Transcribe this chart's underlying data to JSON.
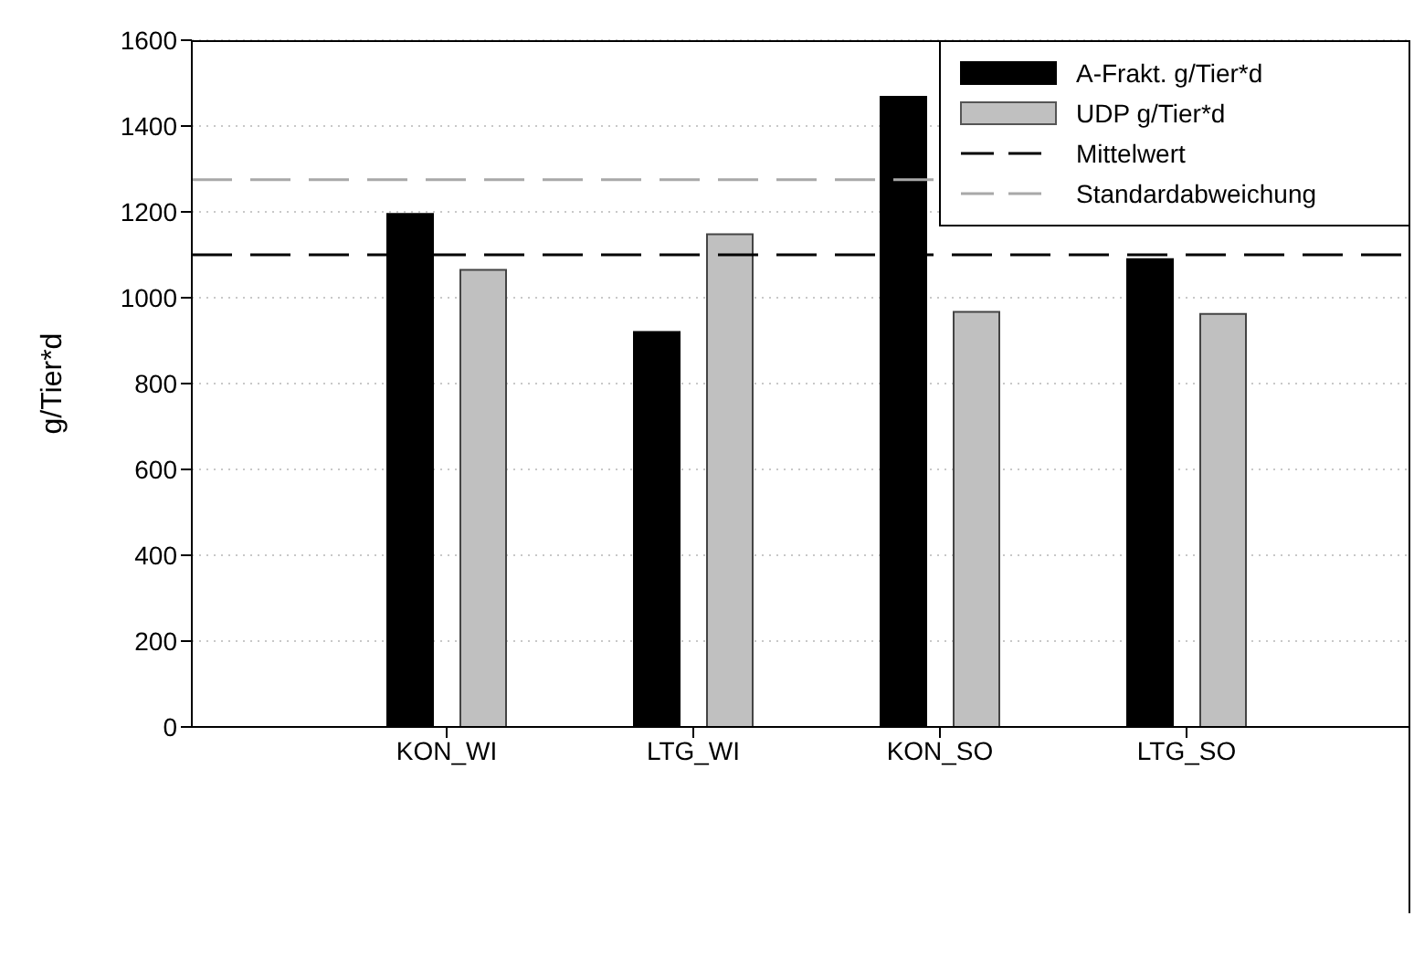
{
  "chart_data": {
    "type": "bar",
    "ylabel": "g/Tier*d",
    "categories": [
      "KON_WI",
      "LTG_WI",
      "KON_SO",
      "LTG_SO"
    ],
    "series": [
      {
        "name": "A-Frakt. g/Tier*d",
        "color": "#000000",
        "values": [
          1195,
          920,
          1468,
          1090
        ]
      },
      {
        "name": "UDP g/Tier*d",
        "color": "#c0c0c0",
        "values": [
          1065,
          1148,
          967,
          962
        ]
      }
    ],
    "ylim": [
      0,
      1600
    ],
    "yticks": [
      0,
      200,
      400,
      600,
      800,
      1000,
      1200,
      1400,
      1600
    ],
    "grid": "y",
    "legend": "top right",
    "ref_lines": [
      {
        "axis": "y",
        "value": 1100,
        "label": "Mittelwert",
        "color": "#000000",
        "line_style": "dashed"
      },
      {
        "axis": "y",
        "value": 1275,
        "label": "Standardabweichung",
        "color": "#a8a8a8",
        "line_style": "dashed"
      }
    ]
  }
}
